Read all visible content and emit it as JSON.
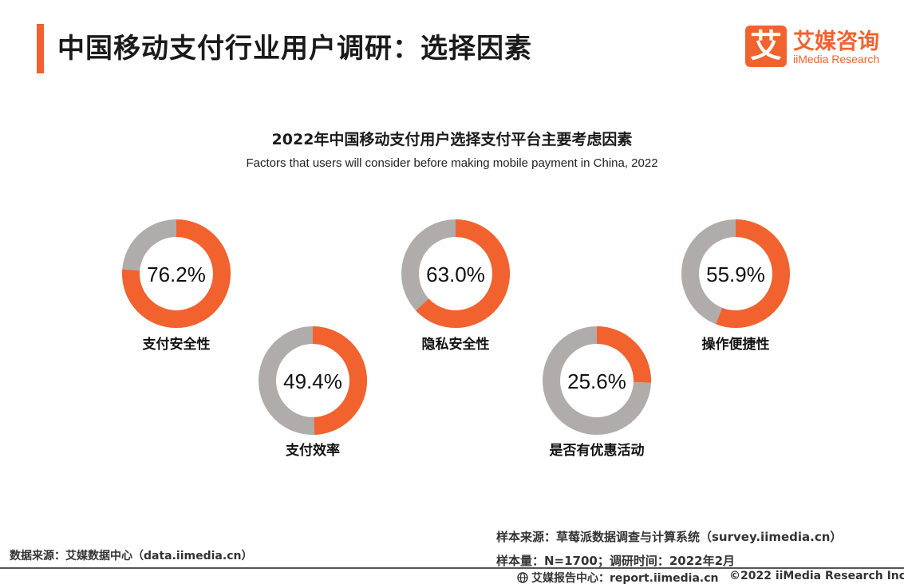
{
  "header": {
    "title": "中国移动支付行业用户调研：选择因素",
    "logo_mark": "艾",
    "logo_cn": "艾媒咨询",
    "logo_en": "iiMedia Research"
  },
  "chart_data": {
    "type": "pie",
    "title": "2022年中国移动支付用户选择支付平台主要考虑因素",
    "subtitle": "Factors that users will consider before making mobile payment in China, 2022",
    "unit": "%",
    "categories": [
      "支付安全性",
      "支付效率",
      "隐私安全性",
      "是否有优惠活动",
      "操作便捷性"
    ],
    "values": [
      76.2,
      49.4,
      63.0,
      25.6,
      55.9
    ],
    "value_labels": [
      "76.2%",
      "49.4%",
      "63.0%",
      "25.6%",
      "55.9%"
    ],
    "colors": {
      "value": "#f2622e",
      "remainder": "#b0acab"
    }
  },
  "footer": {
    "source_left": "数据来源：艾媒数据中心（data.iimedia.cn）",
    "sample_source": "样本来源：草莓派数据调查与计算系统（survey.iimedia.cn）",
    "sample_size": "样本量：N=1700；调研时间：2022年2月",
    "report_center": "艾媒报告中心：report.iimedia.cn",
    "copyright": "©2022 iiMedia Research Inc"
  }
}
